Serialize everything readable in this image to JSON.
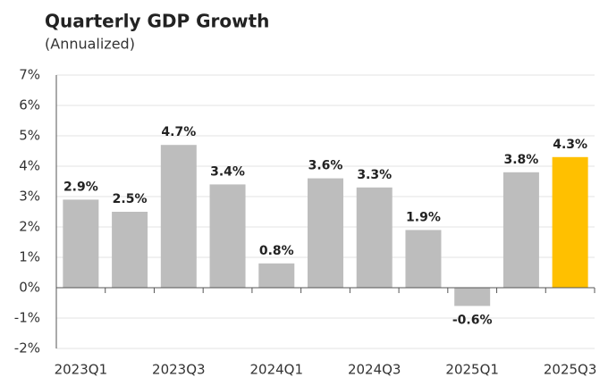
{
  "chart_data": {
    "type": "bar",
    "title": "Quarterly GDP Growth",
    "subtitle": "(Annualized)",
    "categories": [
      "2023Q1",
      null,
      "2023Q3",
      null,
      "2024Q1",
      null,
      "2024Q3",
      null,
      "2025Q1",
      null,
      "2025Q3"
    ],
    "values": [
      2.9,
      2.5,
      4.7,
      3.4,
      0.8,
      3.6,
      3.3,
      1.9,
      -0.6,
      3.8,
      4.3
    ],
    "value_labels": [
      "2.9%",
      "2.5%",
      "4.7%",
      "3.4%",
      "0.8%",
      "3.6%",
      "3.3%",
      "1.9%",
      "-0.6%",
      "3.8%",
      "4.3%"
    ],
    "colors": [
      "#bdbdbd",
      "#bdbdbd",
      "#bdbdbd",
      "#bdbdbd",
      "#bdbdbd",
      "#bdbdbd",
      "#bdbdbd",
      "#bdbdbd",
      "#bdbdbd",
      "#bdbdbd",
      "#ffc000"
    ],
    "ylim": [
      -2,
      7
    ],
    "yticks": [
      {
        "value": -2,
        "label": "-2%"
      },
      {
        "value": -1,
        "label": "-1%"
      },
      {
        "value": 0,
        "label": "0%"
      },
      {
        "value": 1,
        "label": "1%"
      },
      {
        "value": 2,
        "label": "2%"
      },
      {
        "value": 3,
        "label": "3%"
      },
      {
        "value": 4,
        "label": "4%"
      },
      {
        "value": 5,
        "label": "5%"
      },
      {
        "value": 6,
        "label": "6%"
      },
      {
        "value": 7,
        "label": "7%"
      }
    ],
    "grid": true
  }
}
